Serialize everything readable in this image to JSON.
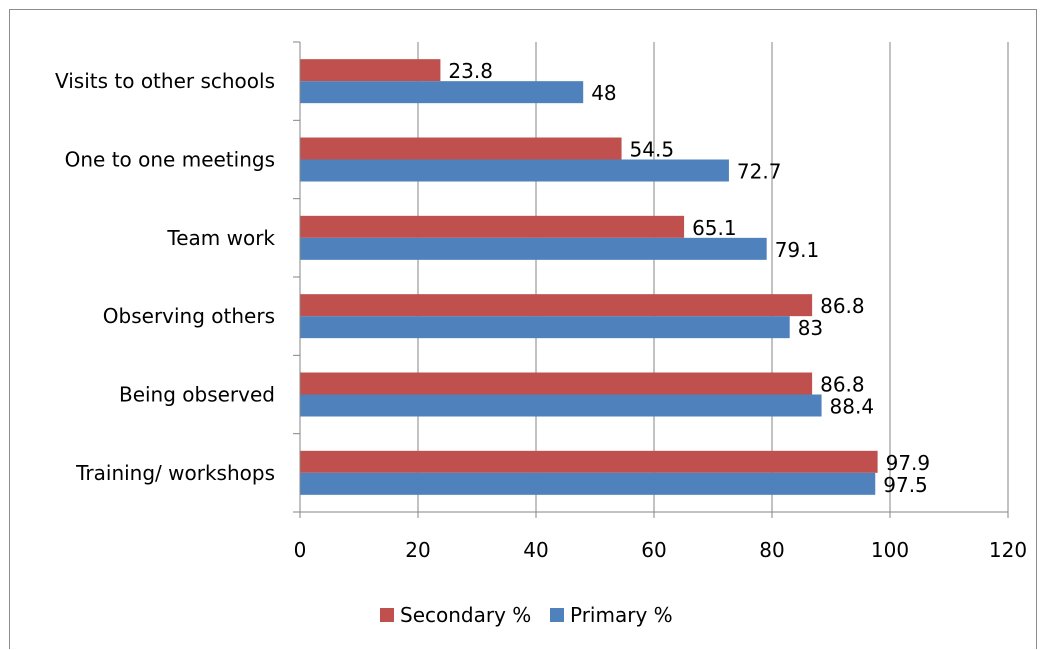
{
  "chart_data": {
    "type": "bar",
    "orientation": "horizontal",
    "title": "",
    "xlabel": "",
    "ylabel": "",
    "categories": [
      "Training/ workshops",
      "Being observed",
      "Observing others",
      "Team work",
      "One to one meetings",
      "Visits to other schools"
    ],
    "series": [
      {
        "name": "Secondary %",
        "color": "#c0504d",
        "values": [
          97.9,
          86.8,
          86.8,
          65.1,
          54.5,
          23.8
        ]
      },
      {
        "name": "Primary %",
        "color": "#4f81bd",
        "values": [
          97.5,
          88.4,
          83,
          79.1,
          72.7,
          48
        ]
      }
    ],
    "xlim": [
      0,
      120
    ],
    "xticks": [
      0,
      20,
      40,
      60,
      80,
      100,
      120
    ],
    "grid": "vertical",
    "grid_color": "#868686",
    "legend_position": "bottom",
    "data_labels": true
  }
}
